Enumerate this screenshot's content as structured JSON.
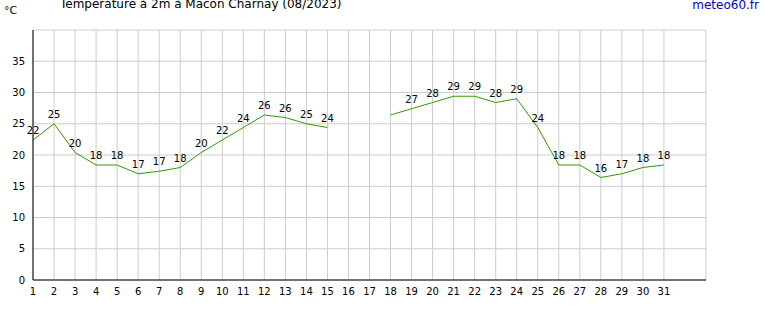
{
  "chart_data": {
    "type": "line",
    "title": "Température à 2m à Macon Charnay (08/2023)",
    "source": "meteo60.fr",
    "ylabel": "°C",
    "x": [
      1,
      2,
      3,
      4,
      5,
      6,
      7,
      8,
      9,
      10,
      11,
      12,
      13,
      14,
      15,
      16,
      17,
      18,
      19,
      20,
      21,
      22,
      23,
      24,
      25,
      26,
      27,
      28,
      29,
      30,
      31
    ],
    "values": [
      22.4,
      25,
      20.4,
      18.4,
      18.4,
      17,
      17.4,
      18,
      20.4,
      22.4,
      24.4,
      26.4,
      26,
      25,
      24.4,
      null,
      null,
      26.4,
      27.4,
      28.4,
      29.4,
      29.4,
      28.4,
      29,
      24.4,
      18.4,
      18.4,
      16.4,
      17,
      18,
      18.4
    ],
    "value_labels": [
      "22",
      "25",
      "20",
      "18",
      "18",
      "17",
      "17",
      "18",
      "20",
      "22",
      "24",
      "26",
      "26",
      "25",
      "24",
      null,
      null,
      null,
      "27",
      "28",
      "29",
      "29",
      "28",
      "29",
      "24",
      "18",
      "18",
      "16",
      "17",
      "18",
      "18"
    ],
    "data_labels": true,
    "color": "#339900",
    "xlim": [
      1,
      33
    ],
    "xticks": [
      1,
      2,
      3,
      4,
      5,
      6,
      7,
      8,
      9,
      10,
      11,
      12,
      13,
      14,
      15,
      16,
      17,
      18,
      19,
      20,
      21,
      22,
      23,
      24,
      25,
      26,
      27,
      28,
      29,
      30,
      31
    ],
    "ylim": [
      0,
      40
    ],
    "yticks": [
      0,
      5,
      10,
      15,
      20,
      25,
      30,
      35
    ],
    "grid": true
  }
}
